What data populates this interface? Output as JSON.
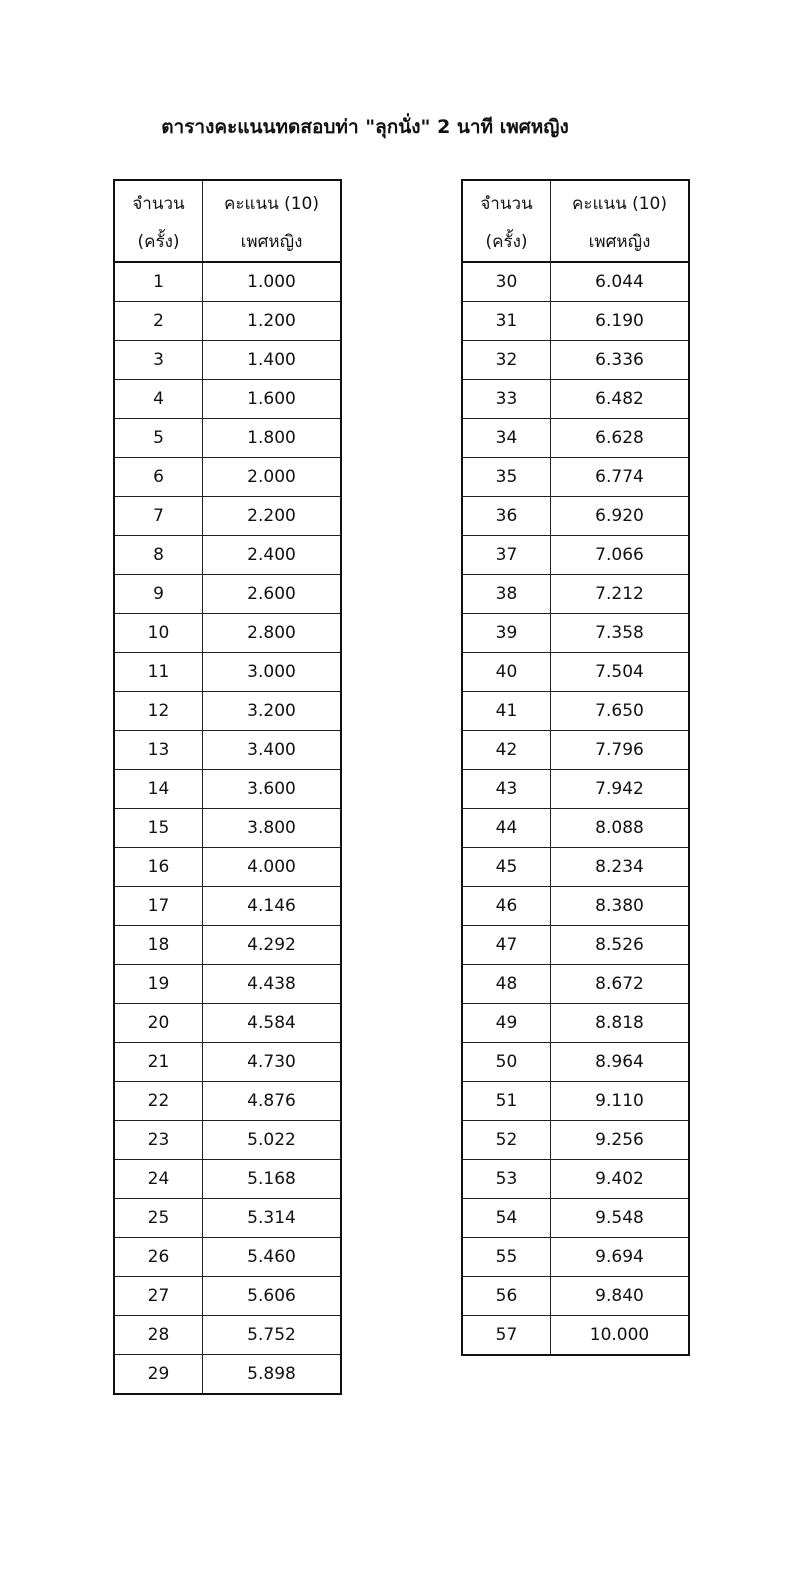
{
  "title": "ตารางคะแนนทดสอบท่า \"ลุกนั่ง\" 2 นาที เพศหญิง",
  "header": {
    "col1_line1": "จำนวน",
    "col1_line2": "(ครั้ง)",
    "col2_line1": "คะแนน (10)",
    "col2_line2": "เพศหญิง"
  },
  "left_table": [
    [
      "1",
      "1.000"
    ],
    [
      "2",
      "1.200"
    ],
    [
      "3",
      "1.400"
    ],
    [
      "4",
      "1.600"
    ],
    [
      "5",
      "1.800"
    ],
    [
      "6",
      "2.000"
    ],
    [
      "7",
      "2.200"
    ],
    [
      "8",
      "2.400"
    ],
    [
      "9",
      "2.600"
    ],
    [
      "10",
      "2.800"
    ],
    [
      "11",
      "3.000"
    ],
    [
      "12",
      "3.200"
    ],
    [
      "13",
      "3.400"
    ],
    [
      "14",
      "3.600"
    ],
    [
      "15",
      "3.800"
    ],
    [
      "16",
      "4.000"
    ],
    [
      "17",
      "4.146"
    ],
    [
      "18",
      "4.292"
    ],
    [
      "19",
      "4.438"
    ],
    [
      "20",
      "4.584"
    ],
    [
      "21",
      "4.730"
    ],
    [
      "22",
      "4.876"
    ],
    [
      "23",
      "5.022"
    ],
    [
      "24",
      "5.168"
    ],
    [
      "25",
      "5.314"
    ],
    [
      "26",
      "5.460"
    ],
    [
      "27",
      "5.606"
    ],
    [
      "28",
      "5.752"
    ],
    [
      "29",
      "5.898"
    ]
  ],
  "right_table": [
    [
      "30",
      "6.044"
    ],
    [
      "31",
      "6.190"
    ],
    [
      "32",
      "6.336"
    ],
    [
      "33",
      "6.482"
    ],
    [
      "34",
      "6.628"
    ],
    [
      "35",
      "6.774"
    ],
    [
      "36",
      "6.920"
    ],
    [
      "37",
      "7.066"
    ],
    [
      "38",
      "7.212"
    ],
    [
      "39",
      "7.358"
    ],
    [
      "40",
      "7.504"
    ],
    [
      "41",
      "7.650"
    ],
    [
      "42",
      "7.796"
    ],
    [
      "43",
      "7.942"
    ],
    [
      "44",
      "8.088"
    ],
    [
      "45",
      "8.234"
    ],
    [
      "46",
      "8.380"
    ],
    [
      "47",
      "8.526"
    ],
    [
      "48",
      "8.672"
    ],
    [
      "49",
      "8.818"
    ],
    [
      "50",
      "8.964"
    ],
    [
      "51",
      "9.110"
    ],
    [
      "52",
      "9.256"
    ],
    [
      "53",
      "9.402"
    ],
    [
      "54",
      "9.548"
    ],
    [
      "55",
      "9.694"
    ],
    [
      "56",
      "9.840"
    ],
    [
      "57",
      "10.000"
    ]
  ]
}
